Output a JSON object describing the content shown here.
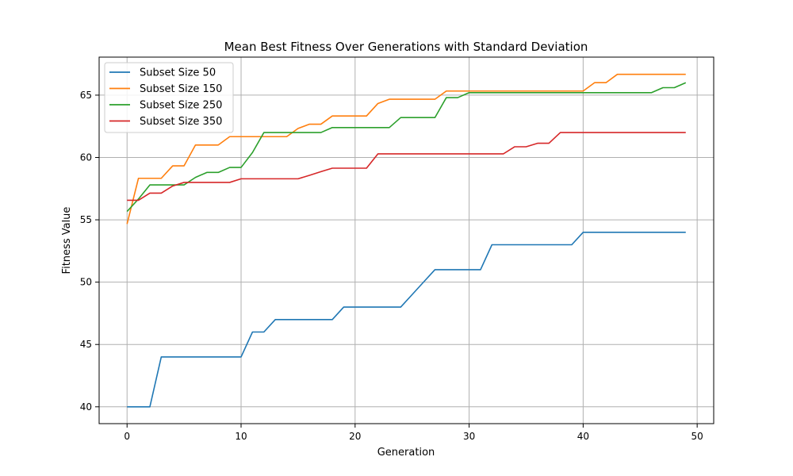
{
  "chart_data": {
    "type": "line",
    "title": "Mean Best Fitness Over Generations with Standard Deviation",
    "xlabel": "Generation",
    "ylabel": "Fitness Value",
    "xlim": [
      -2.45,
      51.45
    ],
    "ylim": [
      38.65,
      68.05
    ],
    "xticks": [
      0,
      10,
      20,
      30,
      40,
      50
    ],
    "yticks": [
      40,
      45,
      50,
      55,
      60,
      65
    ],
    "grid": true,
    "legend_position": "top-left",
    "x": [
      0,
      1,
      2,
      3,
      4,
      5,
      6,
      7,
      8,
      9,
      10,
      11,
      12,
      13,
      14,
      15,
      16,
      17,
      18,
      19,
      20,
      21,
      22,
      23,
      24,
      25,
      26,
      27,
      28,
      29,
      30,
      31,
      32,
      33,
      34,
      35,
      36,
      37,
      38,
      39,
      40,
      41,
      42,
      43,
      44,
      45,
      46,
      47,
      48,
      49
    ],
    "series": [
      {
        "name": "Subset Size 50",
        "color": "#1f77b4",
        "values": [
          40,
          40,
          40,
          44,
          44,
          44,
          44,
          44,
          44,
          44,
          44,
          46,
          46,
          47,
          47,
          47,
          47,
          47,
          47,
          48,
          48,
          48,
          48,
          48,
          48,
          49,
          50,
          51,
          51,
          51,
          51,
          51,
          53,
          53,
          53,
          53,
          53,
          53,
          53,
          53,
          54,
          54,
          54,
          54,
          54,
          54,
          54,
          54,
          54,
          54
        ]
      },
      {
        "name": "Subset Size 150",
        "color": "#ff7f0e",
        "values": [
          54.67,
          58.33,
          58.33,
          58.33,
          59.33,
          59.33,
          61,
          61,
          61,
          61.67,
          61.67,
          61.67,
          61.67,
          61.67,
          61.67,
          62.33,
          62.67,
          62.67,
          63.33,
          63.33,
          63.33,
          63.33,
          64.33,
          64.67,
          64.67,
          64.67,
          64.67,
          64.67,
          65.33,
          65.33,
          65.33,
          65.33,
          65.33,
          65.33,
          65.33,
          65.33,
          65.33,
          65.33,
          65.33,
          65.33,
          65.33,
          66,
          66,
          66.67,
          66.67,
          66.67,
          66.67,
          66.67,
          66.67,
          66.67
        ]
      },
      {
        "name": "Subset Size 250",
        "color": "#2ca02c",
        "values": [
          55.67,
          56.67,
          57.8,
          57.8,
          57.8,
          57.8,
          58.4,
          58.8,
          58.8,
          59.2,
          59.2,
          60.4,
          62,
          62,
          62,
          62,
          62,
          62,
          62.4,
          62.4,
          62.4,
          62.4,
          62.4,
          62.4,
          63.2,
          63.2,
          63.2,
          63.2,
          64.8,
          64.8,
          65.2,
          65.2,
          65.2,
          65.2,
          65.2,
          65.2,
          65.2,
          65.2,
          65.2,
          65.2,
          65.2,
          65.2,
          65.2,
          65.2,
          65.2,
          65.2,
          65.2,
          65.6,
          65.6,
          66
        ]
      },
      {
        "name": "Subset Size 350",
        "color": "#d62728",
        "values": [
          56.57,
          56.57,
          57.14,
          57.14,
          57.71,
          58,
          58,
          58,
          58,
          58,
          58.29,
          58.29,
          58.29,
          58.29,
          58.29,
          58.29,
          58.57,
          58.86,
          59.14,
          59.14,
          59.14,
          59.14,
          60.29,
          60.29,
          60.29,
          60.29,
          60.29,
          60.29,
          60.29,
          60.29,
          60.29,
          60.29,
          60.29,
          60.29,
          60.86,
          60.86,
          61.14,
          61.14,
          62,
          62,
          62,
          62,
          62,
          62,
          62,
          62,
          62,
          62,
          62,
          62
        ]
      }
    ]
  }
}
